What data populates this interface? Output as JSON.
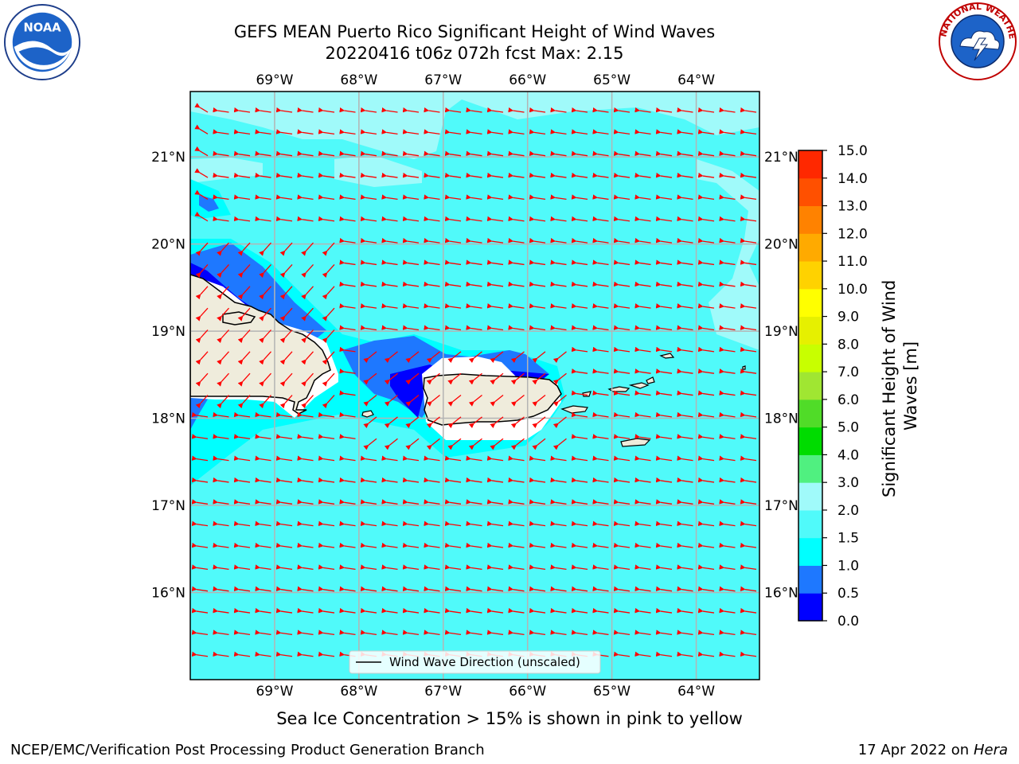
{
  "title": {
    "line1": "GEFS MEAN Puerto Rico Significant Height of Wind Waves",
    "line2": "20220416 t06z 072h fcst   Max: 2.15"
  },
  "logos": {
    "left": "NOAA",
    "right": "NATIONAL WEATHER SERVICE"
  },
  "map": {
    "lon_ticks": [
      "69°W",
      "68°W",
      "67°W",
      "66°W",
      "65°W",
      "64°W"
    ],
    "lon_values": [
      -69,
      -68,
      -67,
      -66,
      -65,
      -64
    ],
    "lat_ticks": [
      "21°N",
      "20°N",
      "19°N",
      "18°N",
      "17°N",
      "16°N"
    ],
    "lat_values": [
      21,
      20,
      19,
      18,
      17,
      16
    ],
    "extent": {
      "lon_min": -70.0,
      "lon_max": -63.25,
      "lat_min": 15.0,
      "lat_max": 21.75
    },
    "ocean_color": "#50fafa",
    "land_color": "#efecdc",
    "arrow_color": "#ff0000",
    "legend_label": "Wind Wave Direction (unscaled)"
  },
  "colorbar": {
    "label_line1": "Significant Height of Wind",
    "label_line2": "Waves [m]",
    "ticks": [
      "0.0",
      "0.5",
      "1.0",
      "1.5",
      "2.0",
      "3.0",
      "4.0",
      "5.0",
      "6.0",
      "7.0",
      "8.0",
      "9.0",
      "10.0",
      "11.0",
      "12.0",
      "13.0",
      "14.0",
      "15.0"
    ],
    "colors": [
      "#0000ff",
      "#1e78ff",
      "#00ffff",
      "#50fafa",
      "#a0fafa",
      "#50f080",
      "#00dc00",
      "#50dc28",
      "#a0e632",
      "#c8ff00",
      "#e6f000",
      "#ffff00",
      "#ffd200",
      "#ffaa00",
      "#ff8200",
      "#ff5000",
      "#ff2800",
      "#ff0000"
    ]
  },
  "chart_data": {
    "type": "heatmap",
    "title": "GEFS MEAN Puerto Rico Significant Height of Wind Waves",
    "subtitle": "20220416 t06z 072h fcst   Max: 2.15",
    "max_value": 2.15,
    "colorbar_range": [
      0.0,
      15.0
    ],
    "units": "m"
  },
  "notes": {
    "sea_ice": "Sea Ice Concentration > 15% is shown in pink to yellow"
  },
  "footer": {
    "left": "NCEP/EMC/Verification Post Processing Product Generation Branch",
    "date": "17 Apr 2022 on ",
    "host": "Hera"
  }
}
